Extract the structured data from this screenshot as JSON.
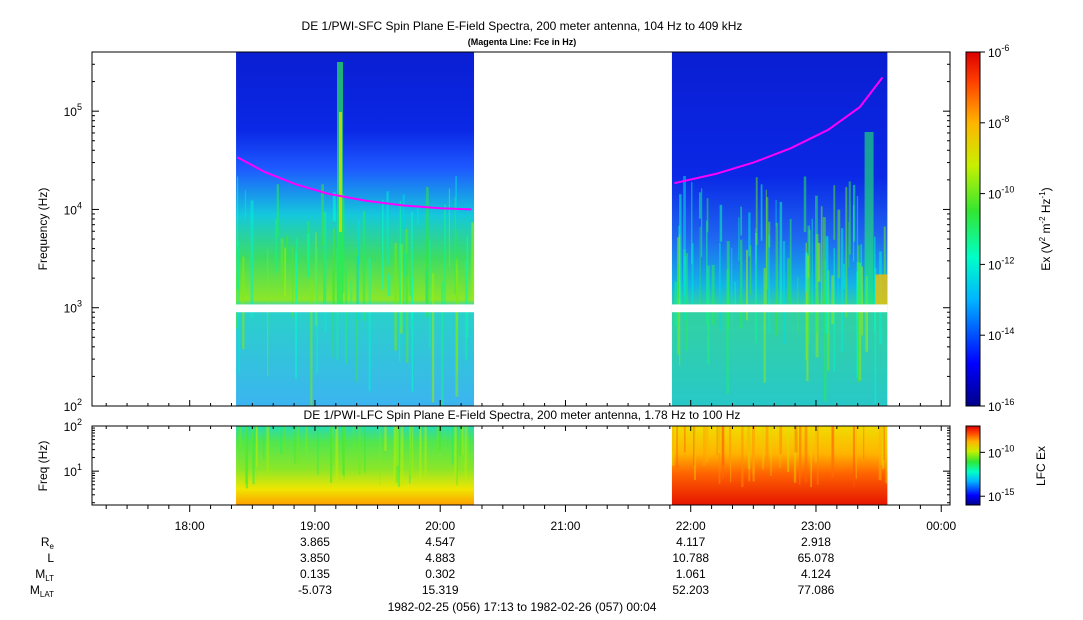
{
  "chart_data": [
    {
      "type": "heatmap",
      "title": "DE 1/PWI-SFC  Spin Plane E-Field Spectra, 200 meter antenna, 104 Hz to 409 kHz",
      "subtitle": "(Magenta Line: Fce in Hz)",
      "ylabel": "Frequency (Hz)",
      "yscale": "log",
      "ylim": [
        100,
        400000
      ],
      "yticks": [
        {
          "value": 100,
          "base": "10",
          "exp": "2"
        },
        {
          "value": 1000,
          "base": "10",
          "exp": "3"
        },
        {
          "value": 10000,
          "base": "10",
          "exp": "4"
        },
        {
          "value": 100000,
          "base": "10",
          "exp": "5"
        }
      ],
      "colorbar": {
        "label_parts": {
          "a": "Ex (V",
          "b": "2",
          "c": " m",
          "d": "-2",
          "e": " Hz",
          "f": "-1",
          "g": ")"
        },
        "scale": "log",
        "range": [
          1e-16,
          1e-06
        ],
        "ticks": [
          {
            "value": 1e-06,
            "base": "10",
            "exp": "-6"
          },
          {
            "value": 1e-08,
            "base": "10",
            "exp": "-8"
          },
          {
            "value": 1e-10,
            "base": "10",
            "exp": "-10"
          },
          {
            "value": 1e-12,
            "base": "10",
            "exp": "-12"
          },
          {
            "value": 1e-14,
            "base": "10",
            "exp": "-14"
          },
          {
            "value": 1e-16,
            "base": "10",
            "exp": "-16"
          }
        ]
      },
      "data_intervals_hours": [
        [
          18.37,
          20.27
        ],
        [
          21.85,
          23.57
        ]
      ],
      "gap_band_hz": [
        900,
        1080
      ],
      "fce_line_magenta": [
        {
          "t": 18.38,
          "f": 34000
        },
        {
          "t": 18.6,
          "f": 24000
        },
        {
          "t": 18.85,
          "f": 18000
        },
        {
          "t": 19.1,
          "f": 14500
        },
        {
          "t": 19.4,
          "f": 12300
        },
        {
          "t": 19.7,
          "f": 11000
        },
        {
          "t": 20.0,
          "f": 10300
        },
        {
          "t": 20.25,
          "f": 10000
        },
        {
          "t": 21.87,
          "f": 18500
        },
        {
          "t": 22.2,
          "f": 23000
        },
        {
          "t": 22.5,
          "f": 30000
        },
        {
          "t": 22.8,
          "f": 42000
        },
        {
          "t": 23.1,
          "f": 65000
        },
        {
          "t": 23.35,
          "f": 110000
        },
        {
          "t": 23.53,
          "f": 220000
        }
      ]
    },
    {
      "type": "heatmap",
      "title": "DE 1/PWI-LFC  Spin Plane E-Field Spectra, 200 meter antenna, 1.78 Hz to 100 Hz",
      "ylabel": "Freq (Hz)",
      "yscale": "log",
      "ylim": [
        1.78,
        100
      ],
      "yticks": [
        {
          "value": 10,
          "base": "10",
          "exp": "1"
        },
        {
          "value": 100,
          "base": "10",
          "exp": "2"
        }
      ],
      "colorbar": {
        "label": "LFC Ex",
        "scale": "log",
        "range": [
          1e-16,
          1e-07
        ],
        "ticks": [
          {
            "value": 1e-10,
            "base": "10",
            "exp": "-10"
          },
          {
            "value": 1e-15,
            "base": "10",
            "exp": "-15"
          }
        ]
      },
      "data_intervals_hours": [
        [
          18.37,
          20.27
        ],
        [
          21.85,
          23.57
        ]
      ]
    }
  ],
  "time_axis": {
    "xlim": [
      17.22,
      24.07
    ],
    "tick_labels": [
      {
        "hour": 18,
        "label": "18:00"
      },
      {
        "hour": 19,
        "label": "19:00"
      },
      {
        "hour": 20,
        "label": "20:00"
      },
      {
        "hour": 21,
        "label": "21:00"
      },
      {
        "hour": 22,
        "label": "22:00"
      },
      {
        "hour": 23,
        "label": "23:00"
      },
      {
        "hour": 24,
        "label": "00:00"
      }
    ],
    "range_label": "1982-02-25 (056) 17:13 to 1982-02-26 (057) 00:04"
  },
  "ephemeris": {
    "rows": [
      {
        "label": "R",
        "sub": "e",
        "values": [
          "3.865",
          "4.547",
          "",
          "4.117",
          "2.918",
          ""
        ]
      },
      {
        "label": "L",
        "sub": "",
        "values": [
          "3.850",
          "4.883",
          "",
          "10.788",
          "65.078",
          ""
        ]
      },
      {
        "label": "M",
        "sub": "LT",
        "values": [
          "0.135",
          "0.302",
          "",
          "1.061",
          "4.124",
          ""
        ]
      },
      {
        "label": "M",
        "sub": "LAT",
        "values": [
          "-5.073",
          "15.319",
          "",
          "52.203",
          "77.086",
          ""
        ]
      }
    ]
  }
}
